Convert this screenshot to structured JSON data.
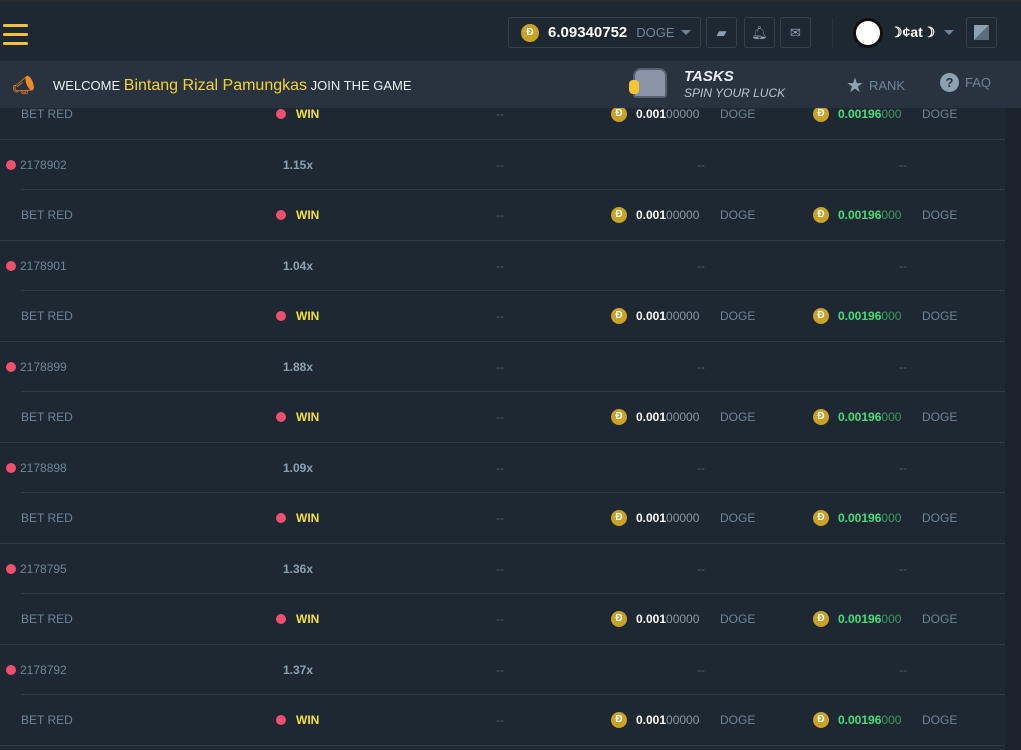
{
  "header": {
    "balance": "6.09340752",
    "currency": "DOGE",
    "username": "☽¢at☽"
  },
  "banner": {
    "welcome": "WELCOME",
    "name": "Bintang Rizal Pamungkas",
    "suffix": "JOIN THE GAME",
    "tasks": "TASKS",
    "tasks_sub": "SPIN YOUR LUCK",
    "rank": "RANK",
    "faq": "FAQ"
  },
  "colors": {
    "accent": "#f5c430",
    "win": "#f5e02c",
    "profit": "#3ee07a",
    "red_dot": "#f0506e"
  },
  "rows": [
    {
      "type": "bet",
      "label": "BET RED",
      "result": "WIN",
      "col3": "--",
      "bet_main": "0.001",
      "bet_rest": "00000",
      "bet_cur": "DOGE",
      "pay_main": "0.00196",
      "pay_rest": "000",
      "pay_cur": "DOGE"
    },
    {
      "type": "game",
      "id": "2178902",
      "mult": "1.15x",
      "dashes": [
        "--",
        "--",
        "--"
      ]
    },
    {
      "type": "bet",
      "label": "BET RED",
      "result": "WIN",
      "col3": "--",
      "bet_main": "0.001",
      "bet_rest": "00000",
      "bet_cur": "DOGE",
      "pay_main": "0.00196",
      "pay_rest": "000",
      "pay_cur": "DOGE"
    },
    {
      "type": "game",
      "id": "2178901",
      "mult": "1.04x",
      "dashes": [
        "--",
        "--",
        "--"
      ]
    },
    {
      "type": "bet",
      "label": "BET RED",
      "result": "WIN",
      "col3": "--",
      "bet_main": "0.001",
      "bet_rest": "00000",
      "bet_cur": "DOGE",
      "pay_main": "0.00196",
      "pay_rest": "000",
      "pay_cur": "DOGE"
    },
    {
      "type": "game",
      "id": "2178899",
      "mult": "1.88x",
      "dashes": [
        "--",
        "--",
        "--"
      ]
    },
    {
      "type": "bet",
      "label": "BET RED",
      "result": "WIN",
      "col3": "--",
      "bet_main": "0.001",
      "bet_rest": "00000",
      "bet_cur": "DOGE",
      "pay_main": "0.00196",
      "pay_rest": "000",
      "pay_cur": "DOGE"
    },
    {
      "type": "game",
      "id": "2178898",
      "mult": "1.09x",
      "dashes": [
        "--",
        "--",
        "--"
      ]
    },
    {
      "type": "bet",
      "label": "BET RED",
      "result": "WIN",
      "col3": "--",
      "bet_main": "0.001",
      "bet_rest": "00000",
      "bet_cur": "DOGE",
      "pay_main": "0.00196",
      "pay_rest": "000",
      "pay_cur": "DOGE"
    },
    {
      "type": "game",
      "id": "2178795",
      "mult": "1.36x",
      "dashes": [
        "--",
        "--",
        "--"
      ]
    },
    {
      "type": "bet",
      "label": "BET RED",
      "result": "WIN",
      "col3": "--",
      "bet_main": "0.001",
      "bet_rest": "00000",
      "bet_cur": "DOGE",
      "pay_main": "0.00196",
      "pay_rest": "000",
      "pay_cur": "DOGE"
    },
    {
      "type": "game",
      "id": "2178792",
      "mult": "1.37x",
      "dashes": [
        "--",
        "--",
        "--"
      ]
    },
    {
      "type": "bet",
      "label": "BET RED",
      "result": "WIN",
      "col3": "--",
      "bet_main": "0.001",
      "bet_rest": "00000",
      "bet_cur": "DOGE",
      "pay_main": "0.00196",
      "pay_rest": "000",
      "pay_cur": "DOGE"
    }
  ]
}
